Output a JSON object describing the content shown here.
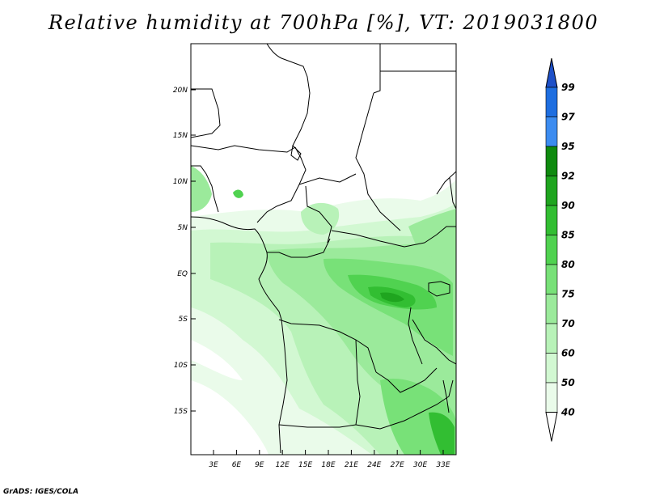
{
  "title": "Relative humidity at 700hPa [%], VT: 2019031800",
  "footer": "GrADS: IGES/COLA",
  "map": {
    "lat_ticks": [
      "20N",
      "15N",
      "10N",
      "5N",
      "EQ",
      "5S",
      "10S",
      "15S"
    ],
    "lon_ticks": [
      "3E",
      "6E",
      "9E",
      "12E",
      "15E",
      "18E",
      "21E",
      "24E",
      "27E",
      "30E",
      "33E"
    ]
  },
  "colorbar": {
    "labels": [
      "99",
      "97",
      "95",
      "92",
      "90",
      "85",
      "80",
      "75",
      "70",
      "60",
      "50",
      "40"
    ],
    "colors": [
      "#1e6ee0",
      "#3c8cf0",
      "#0f8a0f",
      "#1fa51f",
      "#32be32",
      "#50d250",
      "#78e178",
      "#9bea9b",
      "#b8f2b8",
      "#d2f8d2",
      "#eafbea",
      "#ffffff"
    ],
    "top_arrow_color": "#1e50c8"
  }
}
